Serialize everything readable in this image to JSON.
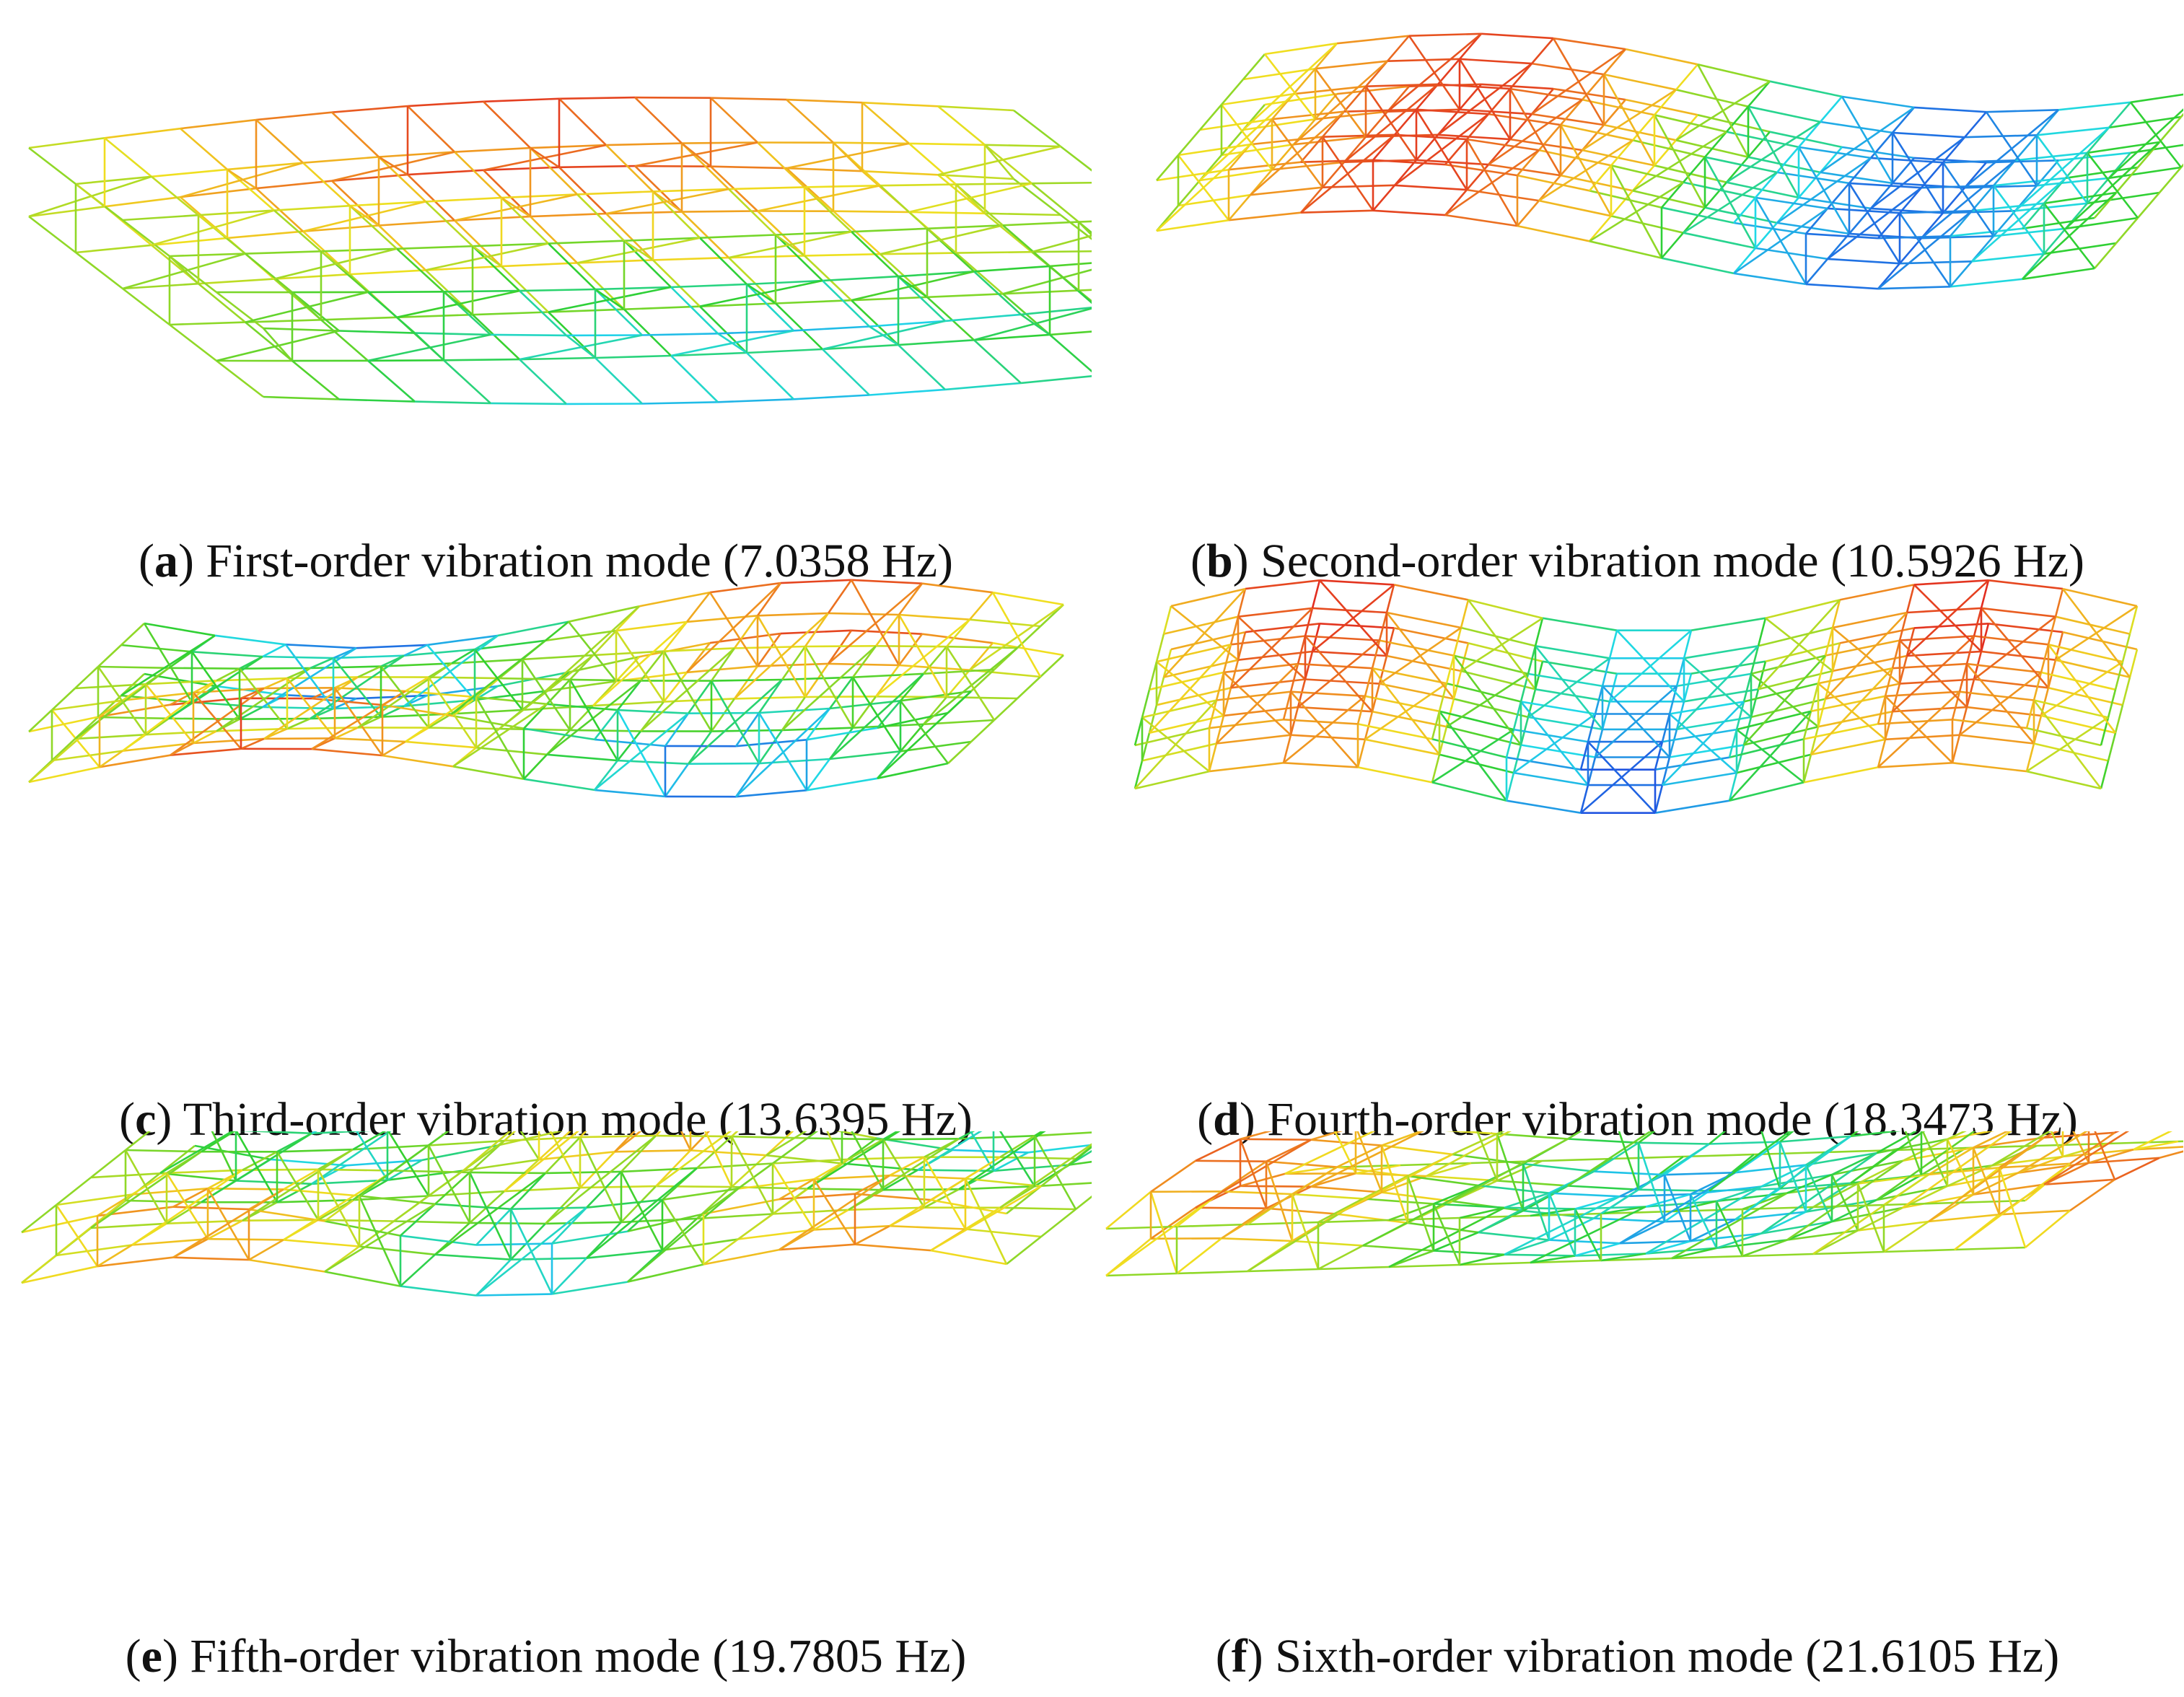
{
  "panels": [
    {
      "id": "a",
      "letter": "a",
      "caption": "First-order vibration mode (7.0358 Hz)",
      "mode": 1
    },
    {
      "id": "b",
      "letter": "b",
      "caption": "Second-order vibration mode (10.5926 Hz)",
      "mode": 2
    },
    {
      "id": "c",
      "letter": "c",
      "caption": "Third-order vibration mode (13.6395 Hz)",
      "mode": 3
    },
    {
      "id": "d",
      "letter": "d",
      "caption": "Fourth-order vibration mode (18.3473 Hz)",
      "mode": 4
    },
    {
      "id": "e",
      "letter": "e",
      "caption": "Fifth-order vibration mode (19.7805 Hz)",
      "mode": 5
    },
    {
      "id": "f",
      "letter": "f",
      "caption": "Sixth-order vibration mode (21.6105 Hz)",
      "mode": 6
    }
  ],
  "colors": {
    "blue": "#2040e0",
    "cyan": "#20d8e8",
    "green": "#30d030",
    "yellow": "#f0e020",
    "orange": "#f09020",
    "red": "#e02020"
  }
}
